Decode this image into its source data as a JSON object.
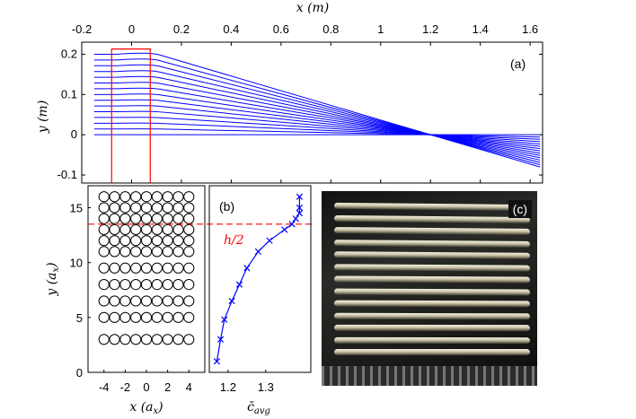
{
  "chart_data": [
    {
      "panel": "(a)",
      "type": "line",
      "xlabel": "x (m)",
      "ylabel": "y (m)",
      "xlim": [
        -0.2,
        1.65
      ],
      "ylim": [
        -0.12,
        0.23
      ],
      "xticks": [
        "-0.2",
        "0",
        "0.2",
        "0.4",
        "0.6",
        "0.8",
        "1",
        "1.2",
        "1.4",
        "1.6"
      ],
      "yticks": [
        "-0.1",
        "0",
        "0.1",
        "0.2"
      ],
      "line_color": "#0000ff",
      "box_color": "#ff0000",
      "rays": {
        "count": 15,
        "x_start": -0.15,
        "x_lens": 0.07,
        "x_focus": 1.2,
        "x_end": 1.64,
        "y_start": [
          0.0,
          0.0143,
          0.0286,
          0.0429,
          0.0571,
          0.0714,
          0.0857,
          0.1,
          0.1143,
          0.1286,
          0.1429,
          0.1571,
          0.1714,
          0.1857,
          0.2
        ],
        "y_lens": [
          0.0,
          0.0147,
          0.0294,
          0.0441,
          0.0589,
          0.0736,
          0.0883,
          0.103,
          0.1177,
          0.1324,
          0.1471,
          0.1619,
          0.1766,
          0.1913,
          0.206
        ]
      },
      "lens_box": {
        "x": [
          -0.08,
          0.075
        ],
        "y_top": 0.213
      },
      "grid": false
    },
    {
      "panel": "lattice",
      "type": "scatter",
      "xlabel": "x (a_x)",
      "ylabel": "y (a_x)",
      "xlim": [
        -5.5,
        5.5
      ],
      "ylim": [
        0,
        17
      ],
      "xticks": [
        "-4",
        "-2",
        "0",
        "2",
        "4"
      ],
      "yticks": [
        "0",
        "5",
        "10",
        "15"
      ],
      "x": [
        -4,
        -3,
        -2,
        -1,
        0,
        1,
        2,
        3,
        4
      ],
      "rows_y": [
        3,
        5,
        6.5,
        8,
        9.5,
        11,
        12,
        13,
        14,
        15,
        16
      ],
      "grid": false
    },
    {
      "panel": "(b)",
      "type": "line",
      "xlabel": "c̄avg",
      "xlim": [
        1.15,
        1.42
      ],
      "ylim": [
        0,
        17
      ],
      "xticks": [
        "1.2",
        "1.3"
      ],
      "x": [
        1.17,
        1.18,
        1.19,
        1.21,
        1.23,
        1.25,
        1.28,
        1.31,
        1.35,
        1.37,
        1.38,
        1.39,
        1.39,
        1.39
      ],
      "y": [
        1,
        3,
        4.8,
        6.5,
        8,
        9.5,
        11,
        12,
        13,
        13.5,
        14,
        14.5,
        15,
        16
      ],
      "line_color": "#0000ff",
      "hline": {
        "y": 13.5,
        "label": "h/2",
        "color": "#ff0000"
      },
      "grid": false
    }
  ],
  "labels": {
    "a_x_label": "x (m)",
    "a_y_label": "y (m)",
    "a_tag": "(a)",
    "l_x_label": "x (a",
    "l_x_sub": "x",
    "l_y_label": "y (a",
    "l_y_sub": "x",
    "b_tag": "(b)",
    "b_x_label": "c̄",
    "b_x_sub": "avg",
    "h_label": "h/2",
    "c_tag": "(c)"
  }
}
